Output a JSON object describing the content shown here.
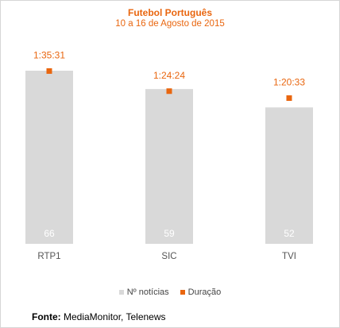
{
  "colors": {
    "bar": "#d9d9d9",
    "marker": "#e9660f",
    "title": "#e9660f",
    "axis_text": "#555555",
    "bar_label": "#ffffff"
  },
  "source": {
    "label": "Fonte:",
    "text": "MediaMonitor, Telenews"
  },
  "chart_data": {
    "type": "bar",
    "title": "Futebol Português",
    "subtitle": "10 a 16 de Agosto de 2015",
    "categories": [
      "RTP1",
      "SIC",
      "TVI"
    ],
    "series": [
      {
        "name": "Nº notícias",
        "values": [
          66,
          59,
          52
        ],
        "data_labels": [
          "66",
          "59",
          "52"
        ]
      },
      {
        "name": "Duração",
        "values": [
          5731,
          5064,
          4833
        ],
        "data_labels": [
          "1:35:31",
          "1:24:24",
          "1:20:33"
        ],
        "unit": "seconds"
      }
    ],
    "ylim": [
      0,
      70
    ],
    "y2lim": [
      0,
      6000
    ],
    "grid": false,
    "legend_position": "bottom"
  }
}
